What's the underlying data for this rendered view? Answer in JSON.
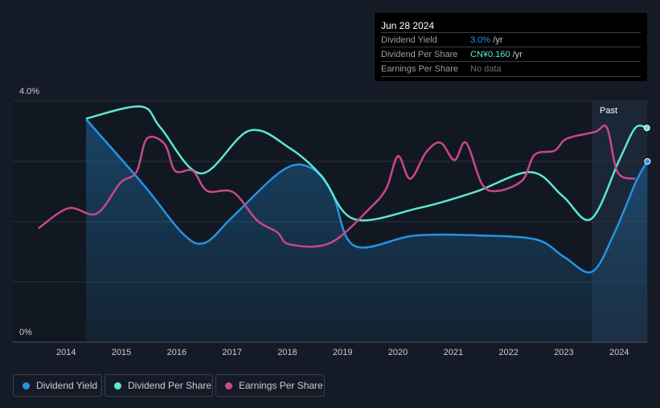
{
  "tooltip": {
    "date": "Jun 28 2024",
    "rows": [
      {
        "label": "Dividend Yield",
        "value": "3.0%",
        "unit": " /yr",
        "color": "#2394e6"
      },
      {
        "label": "Dividend Per Share",
        "value": "CN¥0.160",
        "unit": " /yr",
        "color": "#5ee6d0"
      },
      {
        "label": "Earnings Per Share",
        "value": "No data",
        "unit": "",
        "color": "#6b6f76"
      }
    ]
  },
  "past_label": "Past",
  "legend": [
    {
      "label": "Dividend Yield",
      "color": "#2394e6"
    },
    {
      "label": "Dividend Per Share",
      "color": "#5ee6d0"
    },
    {
      "label": "Earnings Per Share",
      "color": "#c8488a"
    }
  ],
  "chart_data": {
    "type": "line",
    "title": "",
    "y_tick_labels": [
      "4.0%",
      "0%"
    ],
    "ylim": [
      0,
      4
    ],
    "x_ticks": [
      "2014",
      "2015",
      "2016",
      "2017",
      "2018",
      "2019",
      "2020",
      "2021",
      "2022",
      "2023",
      "2024"
    ],
    "xlim": [
      2013.47,
      2024.5
    ],
    "series": [
      {
        "name": "Dividend Yield",
        "unit": "%",
        "color": "#2394e6",
        "points": [
          [
            2014.35,
            3.7
          ],
          [
            2015.4,
            2.6
          ],
          [
            2016.1,
            1.8
          ],
          [
            2016.5,
            1.65
          ],
          [
            2017,
            2.08
          ],
          [
            2017.9,
            2.85
          ],
          [
            2018.4,
            2.9
          ],
          [
            2018.8,
            2.48
          ],
          [
            2019.2,
            1.6
          ],
          [
            2020.3,
            1.77
          ],
          [
            2021.5,
            1.77
          ],
          [
            2022.5,
            1.7
          ],
          [
            2023,
            1.41
          ],
          [
            2023.5,
            1.17
          ],
          [
            2023.9,
            1.81
          ],
          [
            2024.3,
            2.68
          ],
          [
            2024.5,
            3.0
          ]
        ]
      },
      {
        "name": "Dividend Per Share",
        "unit": "CN¥",
        "color": "#5ee6d0",
        "points": [
          [
            2014.35,
            0.167
          ],
          [
            2015.34,
            0.176
          ],
          [
            2015.7,
            0.16
          ],
          [
            2016.43,
            0.126
          ],
          [
            2017.3,
            0.158
          ],
          [
            2018.03,
            0.145
          ],
          [
            2018.61,
            0.124
          ],
          [
            2019.19,
            0.092
          ],
          [
            2020.35,
            0.1
          ],
          [
            2021.37,
            0.112
          ],
          [
            2022.39,
            0.127
          ],
          [
            2022.97,
            0.109
          ],
          [
            2023.48,
            0.092
          ],
          [
            2023.99,
            0.136
          ],
          [
            2024.28,
            0.16
          ],
          [
            2024.49,
            0.16
          ]
        ]
      },
      {
        "name": "Earnings Per Share",
        "unit": "CN¥",
        "color": "#c8488a",
        "points": [
          [
            2013.49,
            0.085
          ],
          [
            2014.03,
            0.1
          ],
          [
            2014.54,
            0.096
          ],
          [
            2014.97,
            0.119
          ],
          [
            2015.26,
            0.127
          ],
          [
            2015.45,
            0.152
          ],
          [
            2015.77,
            0.148
          ],
          [
            2015.96,
            0.128
          ],
          [
            2016.28,
            0.128
          ],
          [
            2016.54,
            0.113
          ],
          [
            2017.01,
            0.112
          ],
          [
            2017.44,
            0.091
          ],
          [
            2017.81,
            0.082
          ],
          [
            2018.03,
            0.073
          ],
          [
            2018.76,
            0.074
          ],
          [
            2019.48,
            0.1
          ],
          [
            2019.78,
            0.115
          ],
          [
            2019.99,
            0.139
          ],
          [
            2020.21,
            0.122
          ],
          [
            2020.5,
            0.142
          ],
          [
            2020.76,
            0.149
          ],
          [
            2021.01,
            0.136
          ],
          [
            2021.22,
            0.149
          ],
          [
            2021.51,
            0.118
          ],
          [
            2021.8,
            0.113
          ],
          [
            2022.24,
            0.121
          ],
          [
            2022.46,
            0.14
          ],
          [
            2022.82,
            0.143
          ],
          [
            2023.04,
            0.152
          ],
          [
            2023.55,
            0.157
          ],
          [
            2023.77,
            0.16
          ],
          [
            2023.96,
            0.127
          ],
          [
            2024.28,
            0.122
          ]
        ]
      }
    ],
    "past_region_start": 2023.49,
    "grid": true
  }
}
